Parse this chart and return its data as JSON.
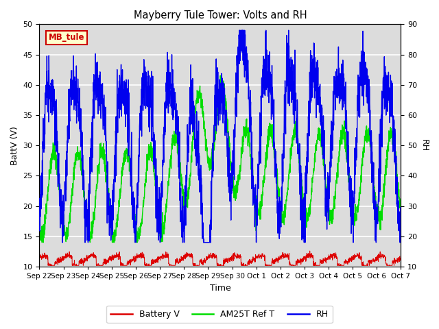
{
  "title": "Mayberry Tule Tower: Volts and RH",
  "xlabel": "Time",
  "ylabel_left": "BattV (V)",
  "ylabel_right": "RH",
  "ylim_left": [
    10,
    50
  ],
  "ylim_right": [
    10,
    90
  ],
  "yticks_left": [
    10,
    15,
    20,
    25,
    30,
    35,
    40,
    45,
    50
  ],
  "yticks_right": [
    10,
    20,
    30,
    40,
    50,
    60,
    70,
    80,
    90
  ],
  "bg_color": "#dcdcdc",
  "grid_color": "#ffffff",
  "label_box_text": "MB_tule",
  "label_box_bg": "#ffffcc",
  "label_box_edge": "#cc0000",
  "battery_color": "#dd0000",
  "am25t_color": "#00dd00",
  "rh_color": "#0000ee",
  "x_tick_labels": [
    "Sep 22",
    "Sep 23",
    "Sep 24",
    "Sep 25",
    "Sep 26",
    "Sep 27",
    "Sep 28",
    "Sep 29",
    "Sep 30",
    "Oct 1",
    "Oct 2",
    "Oct 3",
    "Oct 4",
    "Oct 5",
    "Oct 6",
    "Oct 7"
  ],
  "n_days": 15,
  "seed": 42
}
